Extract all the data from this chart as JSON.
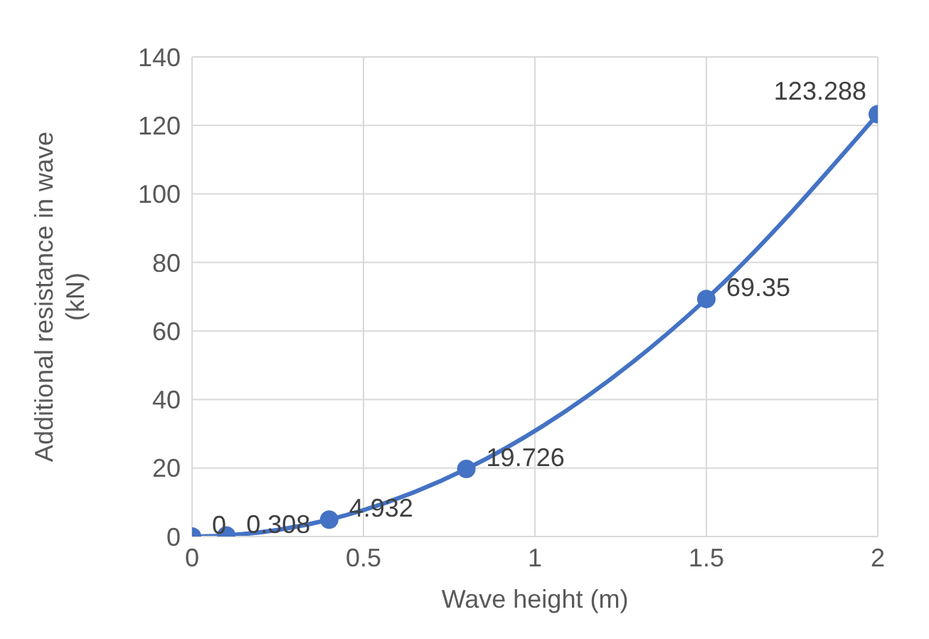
{
  "chart_data": {
    "type": "line",
    "xlabel": "Wave height (m)",
    "ylabel": "Additional resistance in wave (kN)",
    "x": [
      0,
      0.1,
      0.4,
      0.8,
      1.5,
      2
    ],
    "series": [
      {
        "color": "#4472c4",
        "values": [
          0,
          0.308,
          4.932,
          19.726,
          69.35,
          123.288
        ]
      }
    ],
    "xlim": [
      0,
      2
    ],
    "xticks": [
      0,
      0.5,
      1,
      1.5,
      2
    ],
    "ylim": [
      0,
      140
    ],
    "yticks": [
      0,
      20,
      40,
      60,
      80,
      100,
      120,
      140
    ],
    "grid": true,
    "marker": "circle",
    "line_style": "solid",
    "data_labels": true
  }
}
